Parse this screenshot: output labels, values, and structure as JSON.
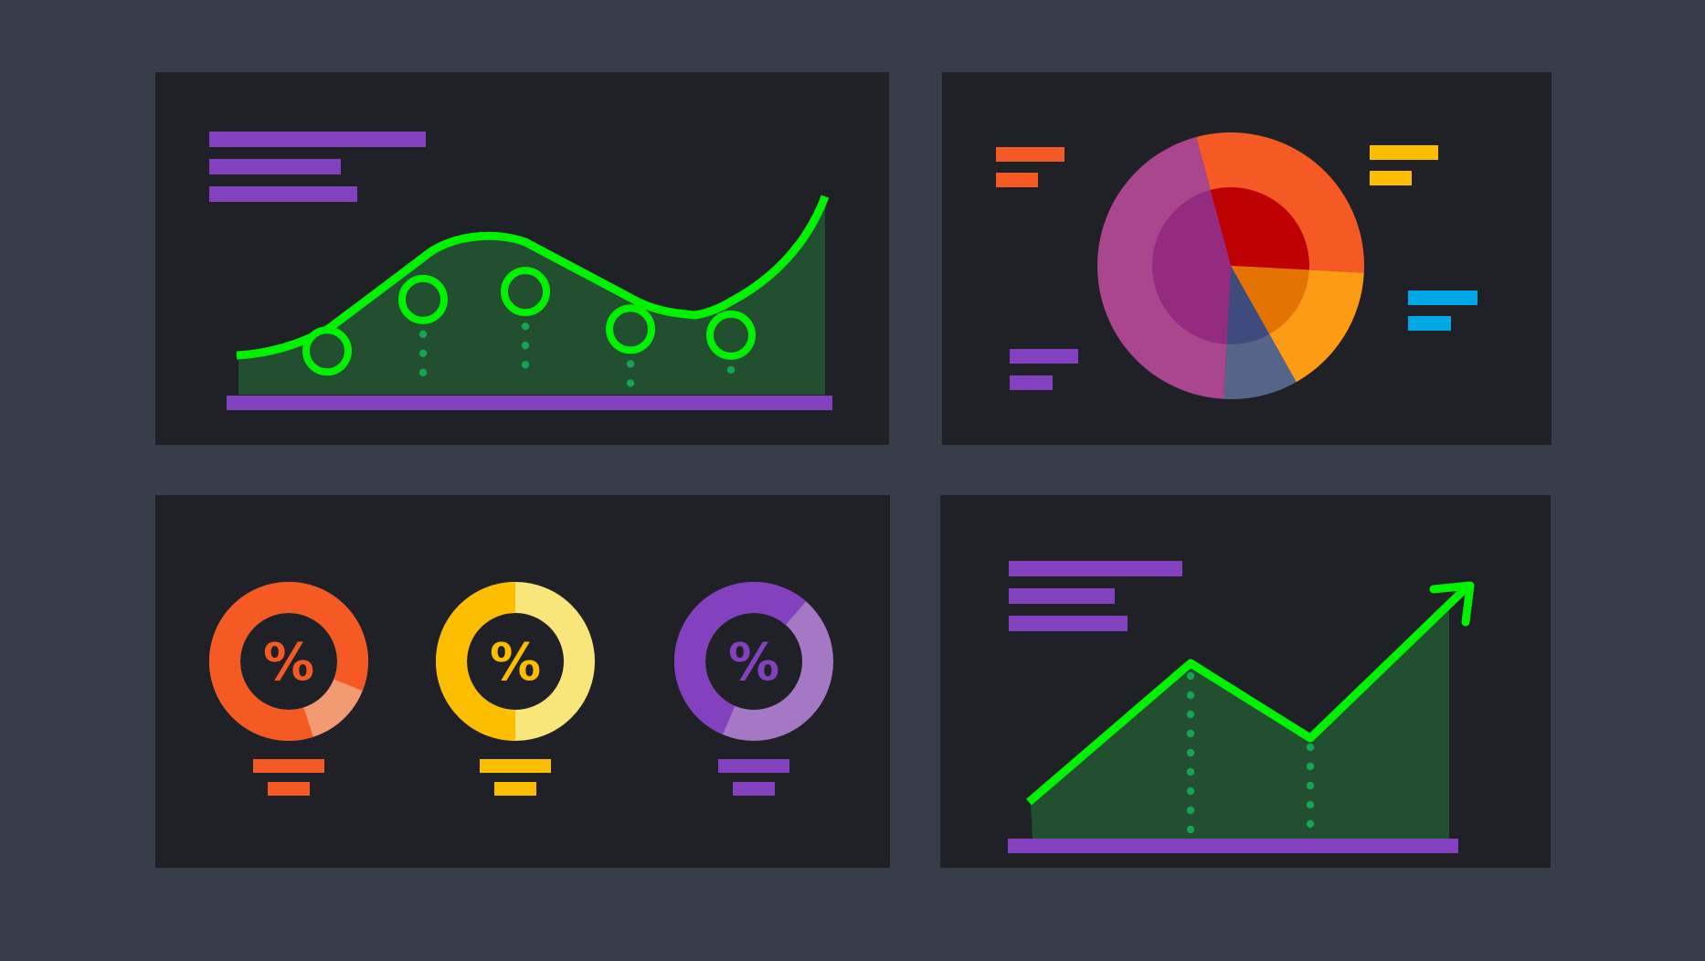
{
  "colors": {
    "background": "#383e49",
    "panel": "#1f2126",
    "purple": "#8340bf",
    "green_line": "#00f200",
    "green_fill": "#224f2f",
    "green_dots": "#13a550",
    "orange": "#f55a24",
    "orange_light": "#f29a72",
    "amber": "#fd9c14",
    "amber_dark": "#e37404",
    "yellow": "#fdbe00",
    "yellow_light": "#f8e67a",
    "red": "#bf0000",
    "slate": "#55658a",
    "slate_dark": "#3f4a7d",
    "magenta": "#aa468e",
    "magenta_dark": "#932b80",
    "purple_light": "#a478c4",
    "blue": "#00a8e6"
  },
  "chart_data": [
    {
      "type": "area",
      "panel": "top-left",
      "marker_values": [
        0.22,
        0.48,
        0.52,
        0.33,
        0.3
      ],
      "series_line": "smooth",
      "ylim": [
        0,
        1
      ],
      "grid": false
    },
    {
      "type": "pie",
      "panel": "top-right",
      "outer_slices": [
        {
          "value": 30,
          "color": "#f55a24"
        },
        {
          "value": 16,
          "color": "#fd9c14"
        },
        {
          "value": 9,
          "color": "#55658a"
        },
        {
          "value": 45,
          "color": "#aa468e"
        }
      ],
      "inner_slices": [
        {
          "value": 30,
          "color": "#bf0000"
        },
        {
          "value": 16,
          "color": "#e37404"
        },
        {
          "value": 9,
          "color": "#3f4a7d"
        },
        {
          "value": 45,
          "color": "#932b80"
        }
      ]
    },
    {
      "type": "donut",
      "panel": "bottom-left",
      "gauges": [
        {
          "label": "%",
          "filled": 0.86,
          "color": "#f55a24",
          "rest_color": "#f29a72"
        },
        {
          "label": "%",
          "filled": 0.5,
          "color": "#fdbe00",
          "rest_color": "#f8e67a"
        },
        {
          "label": "%",
          "filled": 0.55,
          "color": "#8340bf",
          "rest_color": "#a478c4"
        }
      ]
    },
    {
      "type": "area",
      "panel": "bottom-right",
      "values": [
        0.1,
        0.63,
        0.32,
        0.93
      ],
      "arrow_at_end": true,
      "ylim": [
        0,
        1
      ],
      "grid": false
    }
  ]
}
